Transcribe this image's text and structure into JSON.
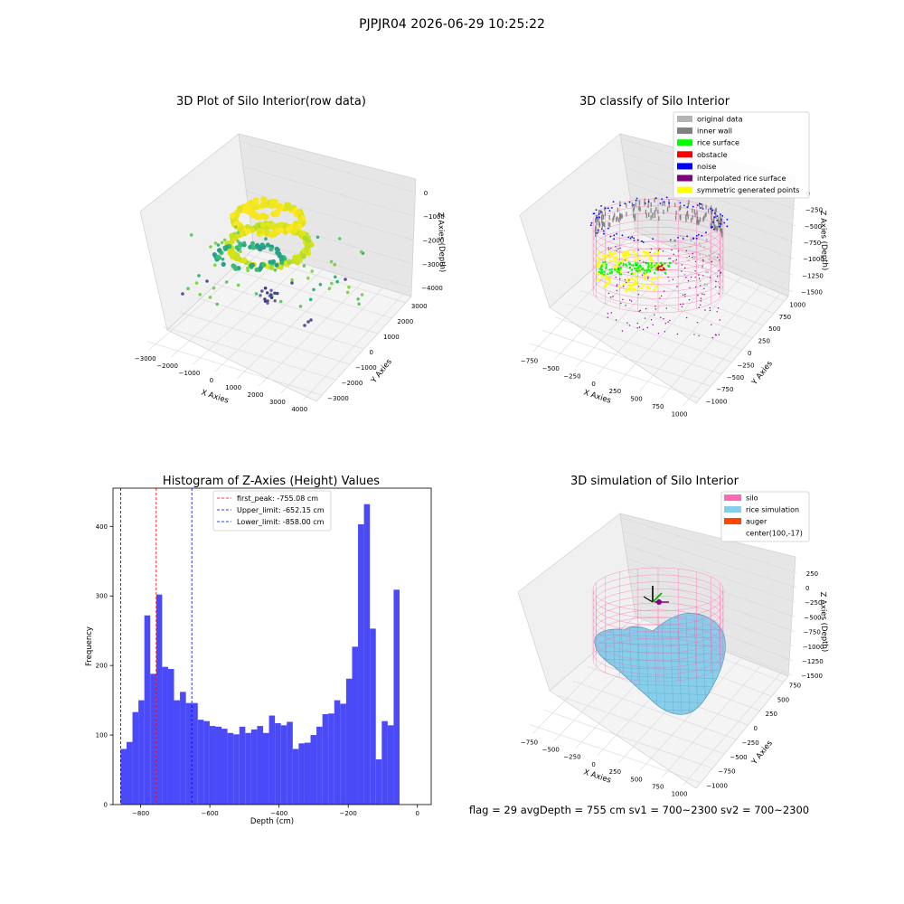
{
  "suptitle": "PJPJR04 2026-06-29 10:25:22",
  "footer": "flag = 29  avgDepth = 755 cm  sv1 = 700~2300  sv2 = 700~2300",
  "colors": {
    "hist_bar": "#4a4af8",
    "first_peak": "#ff0000",
    "limits": "#0000ff",
    "silo": "#ff69b4",
    "rice_simulation": "#87ceeb",
    "auger": "#ff4500",
    "original_data": "#b4b4b4",
    "inner_wall": "#808080",
    "rice_surface": "#00ff00",
    "obstacle": "#ff0000",
    "noise": "#0000ff",
    "interpolated_rice_surface": "#800080",
    "symmetric_generated_points": "#ffff00"
  },
  "panels": {
    "raw": {
      "title": "3D Plot of Silo Interior(row data)",
      "xlabel": "X Axies",
      "ylabel": "Y Axies",
      "zlabel": "Z Axies (Depth)",
      "xticks": [
        "−3000",
        "−2000",
        "−1000",
        "0",
        "1000",
        "2000",
        "3000",
        "4000"
      ],
      "yticks": [
        "−3000",
        "−2000",
        "−1000",
        "0",
        "1000",
        "2000",
        "3000"
      ],
      "zticks": [
        "0",
        "−1000",
        "−2000",
        "−3000",
        "−4000"
      ]
    },
    "classify": {
      "title": "3D classify of Silo Interior",
      "xlabel": "X Axies",
      "ylabel": "Y Axies",
      "zlabel": "Z Axies (Depth)",
      "xticks": [
        "−750",
        "−500",
        "−250",
        "0",
        "250",
        "500",
        "750",
        "1000"
      ],
      "yticks": [
        "−1000",
        "−750",
        "−500",
        "−250",
        "0",
        "250",
        "500",
        "750",
        "1000"
      ],
      "zticks": [
        "0",
        "−250",
        "−500",
        "−750",
        "−1000",
        "−1250",
        "−1500"
      ],
      "legend": [
        "original data",
        "inner wall",
        "rice surface",
        "obstacle",
        "noise",
        "interpolated rice surface",
        "symmetric generated points"
      ]
    },
    "hist": {
      "title": "Histogram of Z-Axies (Height) Values",
      "xlabel": "Depth (cm)",
      "ylabel": "Frequency",
      "legend": [
        "first_peak: -755.08 cm",
        "Upper_limit: -652.15 cm",
        "Lower_limit: -858.00 cm"
      ]
    },
    "sim": {
      "title": "3D simulation of Silo Interior",
      "xlabel": "X Axies",
      "ylabel": "Y Axies",
      "zlabel": "Z Axies (Depth)",
      "xticks": [
        "−750",
        "−500",
        "−250",
        "0",
        "250",
        "500",
        "750",
        "1000"
      ],
      "yticks": [
        "−1000",
        "−750",
        "−500",
        "−250",
        "0",
        "250",
        "500",
        "750"
      ],
      "zticks": [
        "250",
        "0",
        "−250",
        "−500",
        "−750",
        "−1000",
        "−1250",
        "−1500"
      ],
      "legend": [
        "silo",
        "rice simulation",
        "auger",
        "center(100,-17)"
      ]
    }
  },
  "chart_data": {
    "type": "bar",
    "title": "Histogram of Z-Axies (Height) Values",
    "xlabel": "Depth (cm)",
    "ylabel": "Frequency",
    "xlim": [
      -880,
      40
    ],
    "ylim": [
      0,
      455
    ],
    "xticks": [
      -800,
      -600,
      -400,
      -200,
      0
    ],
    "yticks": [
      0,
      100,
      200,
      300,
      400
    ],
    "bins": {
      "start": -858,
      "width": 17.16
    },
    "values": [
      80,
      90,
      133,
      150,
      272,
      188,
      302,
      198,
      195,
      150,
      162,
      146,
      146,
      122,
      120,
      113,
      112,
      109,
      103,
      101,
      112,
      103,
      108,
      113,
      103,
      128,
      117,
      114,
      119,
      80,
      88,
      89,
      100,
      112,
      130,
      131,
      150,
      145,
      181,
      227,
      403,
      432,
      253,
      65,
      120,
      114,
      309
    ],
    "lines": [
      {
        "label": "first_peak: -755.08 cm",
        "x": -755.08,
        "color": "#ff0000"
      },
      {
        "label": "Upper_limit: -652.15 cm",
        "x": -652.15,
        "color": "#0000ff"
      },
      {
        "label": "Lower_limit: -858.00 cm",
        "x": -858.0,
        "color": "#0000ff"
      }
    ],
    "legend_position": "upper-center"
  }
}
